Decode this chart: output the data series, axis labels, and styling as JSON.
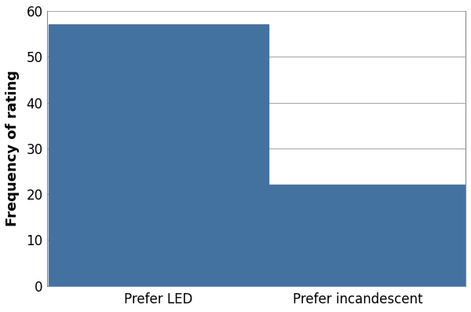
{
  "categories": [
    "Prefer LED",
    "Prefer incandescent"
  ],
  "values": [
    57,
    22
  ],
  "bar_color": "#4472a0",
  "ylabel": "Frequency of rating",
  "ylim": [
    0,
    60
  ],
  "yticks": [
    0,
    10,
    20,
    30,
    40,
    50,
    60
  ],
  "background_color": "#ffffff",
  "bar_width": 0.55,
  "grid_color": "#aaaaaa",
  "label_fontsize": 13,
  "tick_fontsize": 12,
  "bar_positions": [
    0.28,
    0.78
  ],
  "xlim": [
    0.0,
    1.05
  ]
}
